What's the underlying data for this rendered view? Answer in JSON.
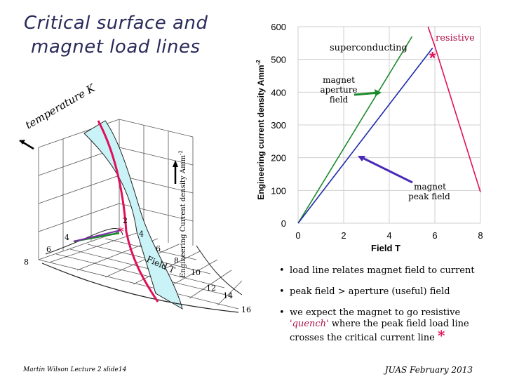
{
  "title": {
    "line1": "Critical surface and",
    "line2": "magnet load lines"
  },
  "left_figure": {
    "axis_temperature": "temperature K",
    "axis_field": "Field T",
    "axis_current": "Engineering Current density Amm",
    "current_exp": "-2",
    "temp_ticks": [
      "2",
      "4",
      "6",
      "8"
    ],
    "field_ticks": [
      "2",
      "4",
      "6",
      "8",
      "10",
      "12",
      "14",
      "16"
    ]
  },
  "chart_data": {
    "type": "line",
    "xlabel": "Field T",
    "ylabel": "Engineering current density Amm",
    "ylabel_exp": "-2",
    "xlim": [
      0,
      8
    ],
    "ylim": [
      0,
      600
    ],
    "x_ticks": [
      "0",
      "2",
      "4",
      "6",
      "8"
    ],
    "y_ticks": [
      "0",
      "100",
      "200",
      "300",
      "400",
      "500",
      "600"
    ],
    "grid": true,
    "series": [
      {
        "key": "aperture",
        "color": "#1a8a2a",
        "x": [
          0,
          5.0
        ],
        "y": [
          0,
          570
        ]
      },
      {
        "key": "peak",
        "color": "#1e2aa8",
        "x": [
          0,
          5.9
        ],
        "y": [
          0,
          535
        ]
      },
      {
        "key": "critical",
        "color": "#e0105a",
        "x": [
          5.7,
          6.0,
          8.0
        ],
        "y": [
          600,
          540,
          95
        ]
      }
    ],
    "region_labels": {
      "superconducting": "superconducting",
      "resistive": "resistive"
    },
    "annotations": {
      "aperture": "magnet aperture field",
      "peak": "magnet peak field"
    },
    "quench_marker": {
      "x": 6.0,
      "y": 535,
      "symbol": "*"
    }
  },
  "bullets": {
    "b1": "load line relates magnet field to current",
    "b2": "peak field > aperture (useful) field",
    "b3_part1": "we expect the magnet to go resistive",
    "b3_quench": "'quench'",
    "b3_part2": "where the peak field load line crosses the critical current line",
    "b3_star": "*"
  },
  "footer": {
    "left": "Martin Wilson Lecture 2 slide14",
    "right": "JUAS February 2013"
  }
}
